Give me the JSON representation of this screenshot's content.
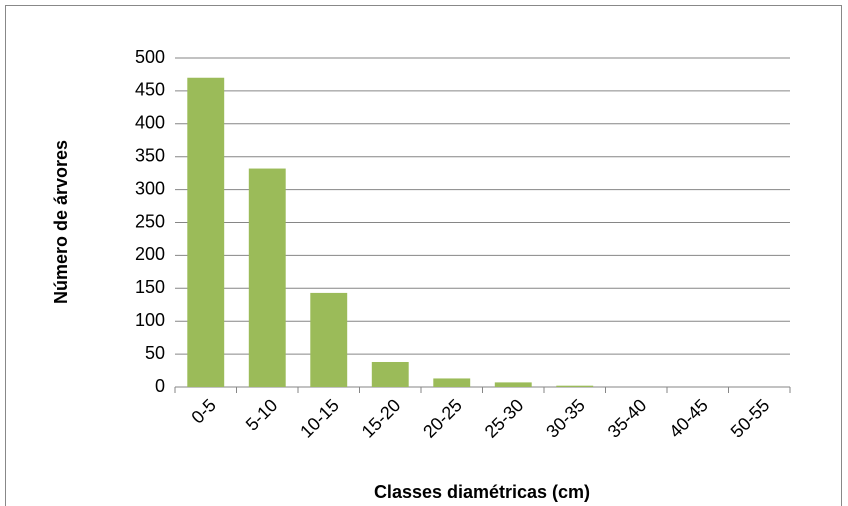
{
  "chart_data": {
    "type": "bar",
    "x_label": "Classes diamétricas (cm)",
    "y_label": "Número de árvores",
    "categories": [
      "0-5",
      "5-10",
      "10-15",
      "15-20",
      "20-25",
      "25-30",
      "30-35",
      "35-40",
      "40-45",
      "50-55"
    ],
    "values": [
      470,
      332,
      143,
      38,
      13,
      7,
      2,
      0,
      0,
      0
    ],
    "color": "#9bbb59",
    "ylim": [
      0,
      500
    ],
    "yticks": [
      0,
      50,
      100,
      150,
      200,
      250,
      300,
      350,
      400,
      450,
      500
    ],
    "grid": true
  }
}
